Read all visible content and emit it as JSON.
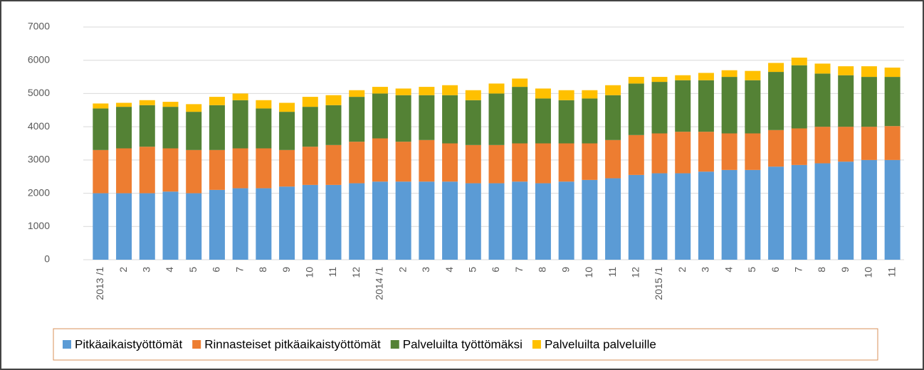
{
  "chart_data": {
    "type": "stacked_bar",
    "categories": [
      "2013 /1",
      "2",
      "3",
      "4",
      "5",
      "6",
      "7",
      "8",
      "9",
      "10",
      "11",
      "12",
      "2014 /1",
      "2",
      "3",
      "4",
      "5",
      "6",
      "7",
      "8",
      "9",
      "10",
      "11",
      "12",
      "2015 /1",
      "2",
      "3",
      "4",
      "5",
      "6",
      "7",
      "8",
      "9",
      "10",
      "11"
    ],
    "series": [
      {
        "name": "Pitkäaikaistyöttömät",
        "color": "#5b9bd5",
        "values": [
          2000,
          2000,
          2000,
          2050,
          2000,
          2100,
          2150,
          2150,
          2200,
          2250,
          2250,
          2300,
          2350,
          2350,
          2350,
          2350,
          2300,
          2300,
          2350,
          2300,
          2350,
          2400,
          2450,
          2550,
          2600,
          2600,
          2650,
          2700,
          2700,
          2800,
          2850,
          2900,
          2950,
          3000,
          3000
        ]
      },
      {
        "name": "Rinnasteiset pitkäaikaistyöttömät",
        "color": "#ed7d31",
        "values": [
          1300,
          1350,
          1400,
          1300,
          1300,
          1200,
          1200,
          1200,
          1100,
          1150,
          1200,
          1250,
          1300,
          1200,
          1250,
          1150,
          1150,
          1150,
          1150,
          1200,
          1150,
          1100,
          1150,
          1200,
          1200,
          1250,
          1200,
          1100,
          1100,
          1100,
          1100,
          1100,
          1050,
          1000,
          1020
        ]
      },
      {
        "name": "Palveluilta työttömäksi",
        "color": "#548235",
        "values": [
          1250,
          1250,
          1250,
          1250,
          1150,
          1350,
          1450,
          1200,
          1150,
          1200,
          1200,
          1350,
          1350,
          1400,
          1350,
          1450,
          1350,
          1550,
          1700,
          1350,
          1300,
          1350,
          1350,
          1550,
          1550,
          1550,
          1550,
          1700,
          1600,
          1750,
          1900,
          1600,
          1550,
          1500,
          1480
        ]
      },
      {
        "name": "Palveluilta palveluille",
        "color": "#ffc000",
        "values": [
          150,
          120,
          150,
          150,
          230,
          250,
          200,
          250,
          270,
          300,
          300,
          200,
          200,
          200,
          250,
          300,
          300,
          300,
          250,
          300,
          300,
          250,
          300,
          200,
          150,
          150,
          220,
          200,
          280,
          270,
          230,
          300,
          270,
          320,
          280
        ]
      }
    ],
    "ylim": [
      0,
      7000
    ],
    "yticks": [
      0,
      1000,
      2000,
      3000,
      4000,
      5000,
      6000,
      7000
    ],
    "grid": true,
    "legend": "bottom"
  }
}
